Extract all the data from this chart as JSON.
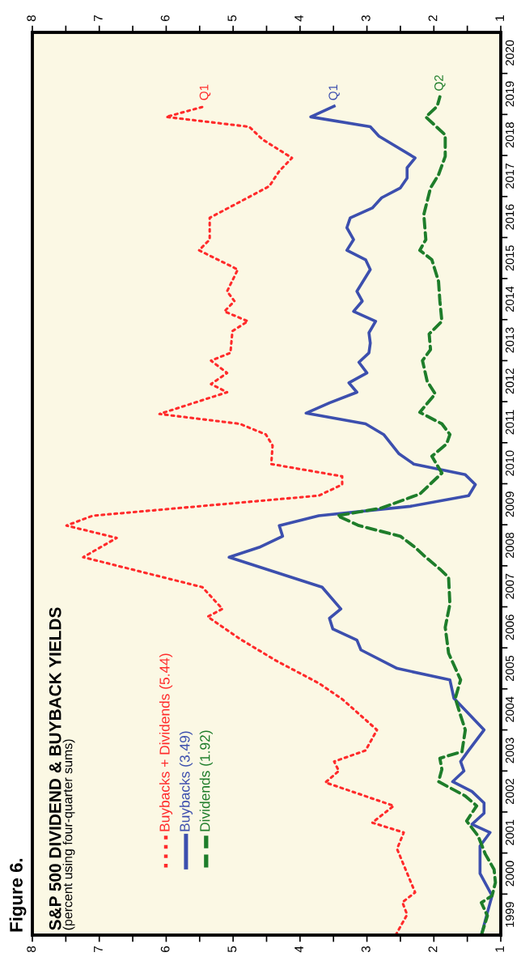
{
  "chart_data": {
    "type": "line",
    "title": "S&P 500 DIVIDEND & BUYBACK YIELDS",
    "subtitle": "(percent using four-quarter sums)",
    "annotations": [
      "Figure 6.",
      {
        "text": "Q1",
        "x": 5.42,
        "y": 2019.2
      },
      {
        "text": "Q1",
        "x": 3.49,
        "y": 2019.2
      },
      {
        "text": "Q2",
        "x": 1.91,
        "y": 2019.43
      }
    ],
    "ylim": [
      1999,
      2021
    ],
    "yticks": [
      {
        "value": 1999.5,
        "label": "1999"
      },
      {
        "value": 2000.5,
        "label": "2000"
      },
      {
        "value": 2001.5,
        "label": "2001"
      },
      {
        "value": 2002.5,
        "label": "2002"
      },
      {
        "value": 2003.5,
        "label": "2003"
      },
      {
        "value": 2004.5,
        "label": "2004"
      },
      {
        "value": 2005.5,
        "label": "2005"
      },
      {
        "value": 2006.5,
        "label": "2006"
      },
      {
        "value": 2007.5,
        "label": "2007"
      },
      {
        "value": 2008.5,
        "label": "2008"
      },
      {
        "value": 2009.5,
        "label": "2009"
      },
      {
        "value": 2010.5,
        "label": "2010"
      },
      {
        "value": 2011.5,
        "label": "2011"
      },
      {
        "value": 2012.5,
        "label": "2012"
      },
      {
        "value": 2013.5,
        "label": "2013"
      },
      {
        "value": 2014.5,
        "label": "2014"
      },
      {
        "value": 2015.5,
        "label": "2015"
      },
      {
        "value": 2016.5,
        "label": "2016"
      },
      {
        "value": 2017.5,
        "label": "2017"
      },
      {
        "value": 2018.5,
        "label": "2018"
      },
      {
        "value": 2019.5,
        "label": "2019"
      },
      {
        "value": 2020.5,
        "label": "2020"
      },
      {
        "value": 2000,
        "label": null
      },
      {
        "value": 2001,
        "label": null
      },
      {
        "value": 2002,
        "label": null
      },
      {
        "value": 2003,
        "label": null
      },
      {
        "value": 2004,
        "label": null
      },
      {
        "value": 2005,
        "label": null
      },
      {
        "value": 2006,
        "label": null
      },
      {
        "value": 2007,
        "label": null
      },
      {
        "value": 2008,
        "label": null
      },
      {
        "value": 2009,
        "label": null
      },
      {
        "value": 2010,
        "label": null
      },
      {
        "value": 2011,
        "label": null
      },
      {
        "value": 2012,
        "label": null
      },
      {
        "value": 2013,
        "label": null
      },
      {
        "value": 2014,
        "label": null
      },
      {
        "value": 2015,
        "label": null
      },
      {
        "value": 2016,
        "label": null
      },
      {
        "value": 2017,
        "label": null
      },
      {
        "value": 2018,
        "label": null
      },
      {
        "value": 2019,
        "label": null
      },
      {
        "value": 2020,
        "label": null
      }
    ],
    "xlim": [
      8,
      1
    ],
    "xticks": [
      1,
      2,
      3,
      4,
      5,
      6,
      7,
      8,
      {
        "value": 1.5,
        "label": null
      },
      {
        "value": 2.5,
        "label": null
      },
      {
        "value": 3.5,
        "label": null
      },
      {
        "value": 4.5,
        "label": null
      },
      {
        "value": 5.5,
        "label": null
      },
      {
        "value": 6.5,
        "label": null
      },
      {
        "value": 7.5,
        "label": null
      }
    ],
    "x2lim": [
      8,
      1
    ],
    "x2ticks": [
      1,
      2,
      3,
      4,
      5,
      6,
      7,
      8,
      {
        "value": 1.5,
        "label": null
      },
      {
        "value": 2.5,
        "label": null
      },
      {
        "value": 3.5,
        "label": null
      },
      {
        "value": 4.5,
        "label": null
      },
      {
        "value": 5.5,
        "label": null
      },
      {
        "value": 6.5,
        "label": null
      },
      {
        "value": 7.5,
        "label": null
      }
    ],
    "legend": "bottom left",
    "series": [
      {
        "name": "Buybacks + Dividends (5.44)",
        "color": "#ff2a2a",
        "line_style": "dotted",
        "values": [
          1999.0,
          1999.5,
          1999.8,
          2000.04,
          2001.1,
          2001.5,
          2001.74,
          2002.15,
          2002.72,
          2003.0,
          2003.23,
          2003.5,
          2004.0,
          2004.75,
          2005.14,
          2005.69,
          2006.22,
          2006.76,
          2006.95,
          2007.48,
          2008.21,
          2008.68,
          2008.98,
          2009.22,
          2009.71,
          2009.98,
          2010.18,
          2010.48,
          2010.93,
          2011.2,
          2011.46,
          2011.7,
          2012.23,
          2012.43,
          2012.7,
          2013.0,
          2013.19,
          2013.72,
          2013.96,
          2014.2,
          2014.45,
          2014.69,
          2015.22,
          2015.69,
          2015.95,
          2016.48,
          2017.25,
          2017.62,
          2017.94,
          2018.39,
          2018.7,
          2018.94,
          2019.2
        ],
        "x": [
          2.57,
          2.4,
          2.47,
          2.28,
          2.55,
          2.45,
          2.92,
          2.6,
          3.62,
          3.42,
          3.49,
          3.02,
          2.85,
          3.37,
          3.72,
          4.36,
          4.9,
          5.38,
          5.16,
          5.46,
          7.24,
          6.74,
          7.49,
          7.1,
          3.72,
          3.37,
          3.37,
          4.43,
          4.41,
          4.51,
          4.9,
          6.1,
          5.09,
          5.33,
          5.09,
          5.33,
          5.04,
          5.01,
          4.78,
          5.13,
          4.98,
          5.09,
          4.93,
          5.51,
          5.35,
          5.35,
          4.46,
          4.31,
          4.12,
          4.56,
          4.76,
          6.0,
          5.42
        ]
      },
      {
        "name": "Buybacks (3.49)",
        "color": "#3c4fae",
        "line_style": "solid",
        "values": [
          1999.0,
          1999.55,
          1999.96,
          2000.5,
          2001.17,
          2001.5,
          2001.7,
          2001.97,
          2002.22,
          2002.5,
          2002.74,
          2003.0,
          2003.23,
          2003.5,
          2004.0,
          2004.77,
          2005.22,
          2005.5,
          2005.95,
          2006.19,
          2006.46,
          2006.72,
          2006.95,
          2007.48,
          2008.21,
          2008.45,
          2008.72,
          2008.98,
          2009.22,
          2009.45,
          2009.71,
          2009.98,
          2010.22,
          2010.48,
          2010.73,
          2011.2,
          2011.46,
          2011.72,
          2011.97,
          2012.23,
          2012.46,
          2012.7,
          2012.96,
          2013.19,
          2013.43,
          2013.68,
          2013.96,
          2014.2,
          2014.45,
          2014.69,
          2015.22,
          2015.46,
          2015.69,
          2015.95,
          2016.24,
          2016.48,
          2016.72,
          2016.97,
          2017.21,
          2017.45,
          2017.7,
          2017.94,
          2018.47,
          2018.7,
          2018.94,
          2019.2
        ],
        "x": [
          1.29,
          1.2,
          1.13,
          1.31,
          1.31,
          1.16,
          1.43,
          1.25,
          1.25,
          1.43,
          1.72,
          1.55,
          1.6,
          1.48,
          1.25,
          1.7,
          1.76,
          2.55,
          3.09,
          3.15,
          3.51,
          3.56,
          3.39,
          3.67,
          5.06,
          4.61,
          4.26,
          4.31,
          3.72,
          2.35,
          1.48,
          1.38,
          1.53,
          2.3,
          2.52,
          2.75,
          3.02,
          3.91,
          3.56,
          3.15,
          3.27,
          3.0,
          3.12,
          2.97,
          2.95,
          2.97,
          2.87,
          3.2,
          3.07,
          3.15,
          2.95,
          3.02,
          3.3,
          3.2,
          3.3,
          3.25,
          2.92,
          2.78,
          2.5,
          2.4,
          2.4,
          2.28,
          2.82,
          2.95,
          3.84,
          3.49
        ]
      },
      {
        "name": "Dividends (1.92)",
        "color": "#1e7d2a",
        "line_style": "dashed",
        "values": [
          1999.0,
          1999.47,
          1999.79,
          1999.96,
          2000.28,
          2000.6,
          2000.97,
          2001.42,
          2001.78,
          2002.15,
          2002.39,
          2002.74,
          2003.04,
          2003.31,
          2003.47,
          2004.0,
          2004.35,
          2004.77,
          2005.22,
          2005.87,
          2006.5,
          2007.07,
          2007.72,
          2007.92,
          2008.25,
          2008.45,
          2008.72,
          2008.98,
          2009.22,
          2009.41,
          2009.75,
          2010.26,
          2010.67,
          2010.97,
          2011.2,
          2011.46,
          2011.74,
          2012.19,
          2012.5,
          2013.0,
          2013.27,
          2013.65,
          2013.96,
          2014.45,
          2014.93,
          2015.46,
          2015.69,
          2015.95,
          2016.56,
          2017.21,
          2017.53,
          2017.98,
          2018.5,
          2018.94,
          2019.2,
          2019.43
        ],
        "x": [
          1.29,
          1.2,
          1.29,
          1.13,
          1.08,
          1.1,
          1.23,
          1.34,
          1.51,
          1.36,
          1.53,
          1.93,
          1.88,
          1.91,
          1.58,
          1.53,
          1.6,
          1.68,
          1.6,
          1.78,
          1.83,
          1.76,
          1.78,
          1.91,
          2.15,
          2.28,
          2.5,
          3.12,
          3.44,
          2.78,
          2.21,
          1.88,
          2.03,
          1.81,
          1.76,
          1.88,
          2.21,
          1.98,
          2.1,
          2.17,
          2.05,
          2.07,
          1.88,
          1.91,
          1.93,
          2.03,
          2.21,
          2.12,
          2.15,
          2.05,
          1.93,
          1.83,
          1.83,
          2.12,
          1.95,
          1.91
        ]
      }
    ]
  }
}
